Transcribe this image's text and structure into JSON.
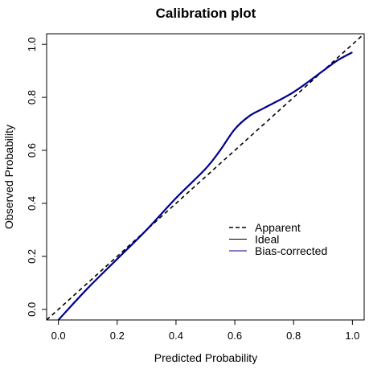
{
  "chart_data": {
    "type": "line",
    "title": "Calibration plot",
    "xlabel": "Predicted Probability",
    "ylabel": "Observed Probability",
    "xlim": [
      -0.04,
      1.04
    ],
    "ylim": [
      -0.04,
      1.04
    ],
    "x_ticks": [
      "0.0",
      "0.2",
      "0.4",
      "0.6",
      "0.8",
      "1.0"
    ],
    "y_ticks": [
      "0.0",
      "0.2",
      "0.4",
      "0.6",
      "0.8",
      "1.0"
    ],
    "grid": false,
    "legend_position": "center-right",
    "series": [
      {
        "name": "Apparent",
        "style": "dashed",
        "color": "#000000",
        "x": [
          -0.04,
          1.04
        ],
        "y": [
          -0.04,
          1.04
        ]
      },
      {
        "name": "Ideal",
        "style": "solid",
        "color": "#000000",
        "x": [],
        "y": []
      },
      {
        "name": "Bias-corrected",
        "style": "solid",
        "color": "#00008B",
        "x": [
          0.0,
          0.1,
          0.2,
          0.3,
          0.4,
          0.5,
          0.55,
          0.6,
          0.65,
          0.7,
          0.8,
          0.9,
          0.95,
          1.0
        ],
        "y": [
          -0.04,
          0.08,
          0.19,
          0.3,
          0.42,
          0.53,
          0.6,
          0.68,
          0.73,
          0.76,
          0.82,
          0.9,
          0.94,
          0.97
        ]
      }
    ]
  }
}
